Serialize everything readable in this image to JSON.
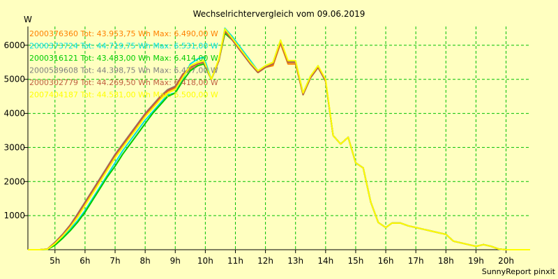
{
  "chart_data": {
    "type": "line",
    "title": "Wechselrichtervergleich vom 09.06.2019",
    "ylabel": "W",
    "xlabel": "",
    "x_tick_labels": [
      "5h",
      "6h",
      "7h",
      "8h",
      "9h",
      "10h",
      "11h",
      "12h",
      "13h",
      "14h",
      "15h",
      "16h",
      "17h",
      "18h",
      "19h",
      "20h"
    ],
    "x_tick_values": [
      5,
      6,
      7,
      8,
      9,
      10,
      11,
      12,
      13,
      14,
      15,
      16,
      17,
      18,
      19,
      20
    ],
    "y_tick_values": [
      1000,
      2000,
      3000,
      4000,
      5000,
      6000
    ],
    "y_tick_labels": [
      "1000",
      "2000",
      "3000",
      "4000",
      "5000",
      "6000"
    ],
    "xlim": [
      4.1,
      20.8
    ],
    "ylim": [
      0,
      6550
    ],
    "grid": true,
    "legend_position": "top-left",
    "footer": "SunnyReport pinxit",
    "x": [
      4.1,
      4.5,
      4.75,
      5.0,
      5.25,
      5.5,
      5.75,
      6.0,
      6.25,
      6.5,
      6.75,
      7.0,
      7.25,
      7.5,
      7.75,
      8.0,
      8.25,
      8.5,
      8.75,
      9.0,
      9.25,
      9.5,
      9.75,
      9.95,
      10.2,
      10.45,
      10.65,
      10.9,
      11.2,
      11.5,
      11.75,
      12.0,
      12.25,
      12.5,
      12.75,
      13.0,
      13.25,
      13.5,
      13.75,
      14.0,
      14.25,
      14.5,
      14.75,
      15.0,
      15.25,
      15.5,
      15.75,
      16.0,
      16.2,
      16.5,
      16.75,
      17.0,
      17.25,
      17.5,
      17.75,
      18.0,
      18.25,
      18.5,
      18.75,
      19.0,
      19.25,
      19.5,
      19.75,
      20.0,
      20.5,
      20.8
    ],
    "series": [
      {
        "name": "2000376360 Tot: 43.953,75 Wh Max: 6.490,00 W",
        "color": "#ff8000",
        "values": [
          0,
          0,
          20,
          200,
          420,
          700,
          1000,
          1350,
          1700,
          2050,
          2400,
          2750,
          3050,
          3350,
          3650,
          3950,
          4200,
          4450,
          4650,
          4750,
          5100,
          5300,
          5400,
          5450,
          5000,
          5550,
          6400,
          6150,
          5800,
          5450,
          5200,
          5350,
          5400,
          6050,
          5450,
          5450,
          4550,
          5050,
          5350,
          4950,
          3350,
          3100,
          3300,
          2550,
          2400,
          1400,
          800,
          650,
          780,
          780,
          700,
          650,
          600,
          550,
          500,
          450,
          250,
          200,
          150,
          100,
          150,
          100,
          20,
          0,
          0,
          0
        ]
      },
      {
        "name": "2000373724 Tot: 44.719,75 Wh Max: 6.531,00 W",
        "color": "#00e0e0",
        "values": [
          0,
          0,
          10,
          150,
          350,
          600,
          850,
          1150,
          1500,
          1850,
          2200,
          2550,
          2900,
          3200,
          3500,
          3800,
          4050,
          4300,
          4550,
          4600,
          5000,
          5450,
          5600,
          5650,
          5000,
          5550,
          6500,
          6250,
          5900,
          5550,
          5250,
          5400,
          5500,
          6150,
          5500,
          5550,
          4600,
          5100,
          5400,
          4950,
          3350,
          3100,
          3300,
          2550,
          2400,
          1400,
          800,
          650,
          780,
          780,
          700,
          650,
          600,
          550,
          500,
          450,
          250,
          200,
          150,
          100,
          150,
          100,
          20,
          0,
          0,
          0
        ]
      },
      {
        "name": "2000316121 Tot: 43.483,00 Wh Max: 6.414,00 W",
        "color": "#00cc00",
        "values": [
          0,
          0,
          10,
          130,
          330,
          550,
          800,
          1100,
          1450,
          1800,
          2150,
          2450,
          2800,
          3100,
          3400,
          3700,
          4000,
          4250,
          4500,
          4600,
          4950,
          5250,
          5400,
          5450,
          5000,
          5550,
          6350,
          6150,
          5800,
          5450,
          5200,
          5350,
          5450,
          6100,
          5500,
          5500,
          4550,
          5050,
          5350,
          4950,
          3350,
          3100,
          3300,
          2550,
          2400,
          1400,
          800,
          650,
          780,
          780,
          700,
          650,
          600,
          550,
          500,
          450,
          250,
          200,
          150,
          100,
          150,
          100,
          20,
          0,
          0,
          0
        ]
      },
      {
        "name": "2000589608 Tot: 44.398,75 Wh Max: 6.427,00 W",
        "color": "#808080",
        "values": [
          0,
          0,
          20,
          220,
          450,
          720,
          1050,
          1400,
          1750,
          2100,
          2450,
          2800,
          3100,
          3400,
          3700,
          4000,
          4250,
          4500,
          4700,
          4800,
          5150,
          5350,
          5450,
          5500,
          5000,
          5550,
          6420,
          6150,
          5800,
          5450,
          5200,
          5350,
          5450,
          6100,
          5500,
          5500,
          4550,
          5050,
          5350,
          4950,
          3350,
          3100,
          3300,
          2550,
          2400,
          1400,
          800,
          650,
          780,
          780,
          700,
          650,
          600,
          550,
          500,
          450,
          250,
          200,
          150,
          100,
          150,
          100,
          20,
          0,
          0,
          0
        ]
      },
      {
        "name": "2000302779 Tot: 44.269,50 Wh Max: 6.418,00 W",
        "color": "#c06040",
        "values": [
          0,
          0,
          20,
          210,
          440,
          710,
          1030,
          1380,
          1730,
          2080,
          2430,
          2780,
          3080,
          3380,
          3680,
          3980,
          4230,
          4480,
          4680,
          4780,
          5150,
          5350,
          5450,
          5500,
          5000,
          5550,
          6410,
          6150,
          5800,
          5450,
          5200,
          5350,
          5450,
          6100,
          5500,
          5500,
          4550,
          5050,
          5350,
          4950,
          3350,
          3100,
          3300,
          2550,
          2400,
          1400,
          800,
          650,
          780,
          780,
          700,
          650,
          600,
          550,
          500,
          450,
          250,
          200,
          150,
          100,
          150,
          100,
          20,
          0,
          0,
          0
        ]
      },
      {
        "name": "2007404187 Tot: 44.581,00 Wh Max: 6.500,00 W",
        "color": "#ffff00",
        "values": [
          0,
          0,
          15,
          180,
          400,
          650,
          950,
          1300,
          1650,
          2000,
          2350,
          2700,
          3000,
          3300,
          3600,
          3900,
          4150,
          4400,
          4600,
          4700,
          5050,
          5400,
          5500,
          5550,
          5000,
          5600,
          6480,
          6200,
          5850,
          5500,
          5250,
          5400,
          5500,
          6150,
          5550,
          5550,
          4600,
          5100,
          5400,
          5000,
          3350,
          3100,
          3300,
          2550,
          2400,
          1400,
          800,
          650,
          780,
          780,
          700,
          650,
          600,
          550,
          500,
          450,
          250,
          200,
          150,
          100,
          150,
          100,
          20,
          0,
          0,
          0
        ]
      }
    ]
  }
}
